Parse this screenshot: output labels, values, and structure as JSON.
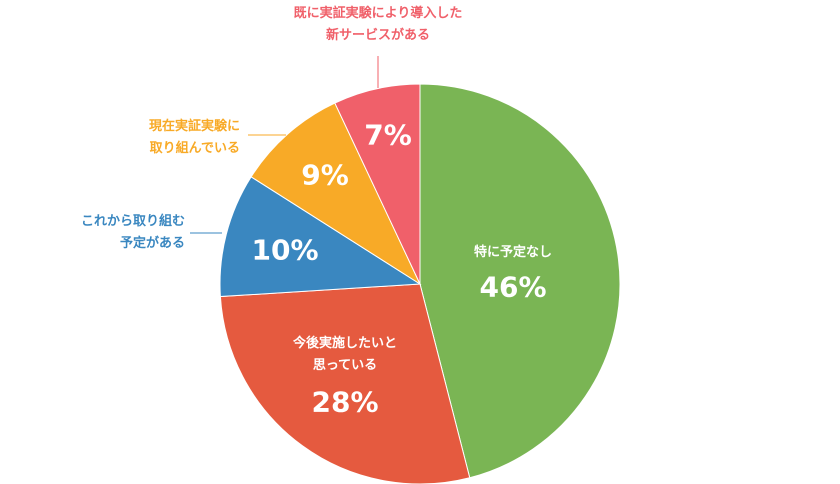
{
  "chart_data": {
    "type": "pie",
    "categories": [
      "特に予定なし",
      "今後実施したいと\n思っている",
      "これから取り組む\n予定がある",
      "現在実証実験に\n取り組んでいる",
      "既に実証実験により導入した\n新サービスがある"
    ],
    "values": [
      46,
      28,
      10,
      9,
      7
    ],
    "value_labels": [
      "46%",
      "28%",
      "10%",
      "9%",
      "7%"
    ],
    "colors": [
      "#7ab554",
      "#e55a3f",
      "#3a87c0",
      "#f8aa27",
      "#f0606a"
    ]
  }
}
